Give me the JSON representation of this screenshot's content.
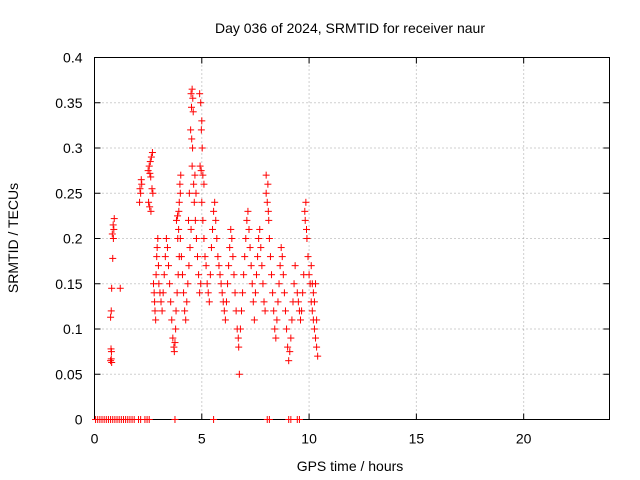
{
  "chart_data": {
    "type": "scatter",
    "title": "Day 036 of 2024, SRMTID for receiver naur",
    "xlabel": "GPS time / hours",
    "ylabel": "SRMTID / TECUs",
    "xlim": [
      0,
      24
    ],
    "ylim": [
      0,
      0.4
    ],
    "x_ticks": [
      "0",
      "5",
      "10",
      "15",
      "20"
    ],
    "y_ticks": [
      "0",
      "0.05",
      "0.1",
      "0.15",
      "0.2",
      "0.25",
      "0.3",
      "0.35",
      "0.4"
    ],
    "grid": true,
    "marker": "+",
    "color": "#ff0000",
    "series": [
      {
        "points": [
          [
            0.05,
            0
          ],
          [
            0.15,
            0
          ],
          [
            0.25,
            0
          ],
          [
            0.35,
            0
          ],
          [
            0.45,
            0
          ],
          [
            0.55,
            0
          ],
          [
            0.65,
            0
          ],
          [
            0.75,
            0
          ],
          [
            0.85,
            0
          ],
          [
            0.95,
            0
          ],
          [
            1.05,
            0
          ],
          [
            1.15,
            0
          ],
          [
            1.25,
            0
          ],
          [
            1.35,
            0
          ],
          [
            1.45,
            0
          ],
          [
            1.55,
            0
          ],
          [
            1.65,
            0
          ],
          [
            1.75,
            0
          ],
          [
            1.85,
            0
          ],
          [
            2.05,
            0
          ],
          [
            2.15,
            0
          ],
          [
            2.35,
            0
          ],
          [
            2.45,
            0
          ],
          [
            2.55,
            0
          ],
          [
            3.75,
            0
          ],
          [
            5.55,
            0
          ],
          [
            8.05,
            0
          ],
          [
            8.15,
            0
          ],
          [
            9.05,
            0
          ],
          [
            9.15,
            0
          ],
          [
            9.45,
            0
          ],
          [
            9.55,
            0
          ],
          [
            0.75,
            0.065
          ],
          [
            0.78,
            0.067
          ],
          [
            0.8,
            0.063
          ],
          [
            0.77,
            0.078
          ],
          [
            0.79,
            0.075
          ],
          [
            0.75,
            0.113
          ],
          [
            0.78,
            0.12
          ],
          [
            0.8,
            0.145
          ],
          [
            0.85,
            0.178
          ],
          [
            0.88,
            0.2
          ],
          [
            0.9,
            0.21
          ],
          [
            0.87,
            0.215
          ],
          [
            0.92,
            0.222
          ],
          [
            0.83,
            0.205
          ],
          [
            1.2,
            0.145
          ],
          [
            2.1,
            0.24
          ],
          [
            2.15,
            0.25
          ],
          [
            2.12,
            0.255
          ],
          [
            2.18,
            0.265
          ],
          [
            2.2,
            0.26
          ],
          [
            2.5,
            0.275
          ],
          [
            2.55,
            0.28
          ],
          [
            2.6,
            0.285
          ],
          [
            2.65,
            0.29
          ],
          [
            2.7,
            0.295
          ],
          [
            2.58,
            0.272
          ],
          [
            2.62,
            0.268
          ],
          [
            2.52,
            0.24
          ],
          [
            2.57,
            0.235
          ],
          [
            2.63,
            0.23
          ],
          [
            2.68,
            0.255
          ],
          [
            2.72,
            0.25
          ],
          [
            2.75,
            0.15
          ],
          [
            2.78,
            0.14
          ],
          [
            2.8,
            0.13
          ],
          [
            2.82,
            0.12
          ],
          [
            2.85,
            0.11
          ],
          [
            2.87,
            0.16
          ],
          [
            2.9,
            0.18
          ],
          [
            2.92,
            0.19
          ],
          [
            2.95,
            0.2
          ],
          [
            2.98,
            0.17
          ],
          [
            3.0,
            0.15
          ],
          [
            3.05,
            0.14
          ],
          [
            3.1,
            0.13
          ],
          [
            3.15,
            0.12
          ],
          [
            3.2,
            0.14
          ],
          [
            3.25,
            0.16
          ],
          [
            3.3,
            0.18
          ],
          [
            3.35,
            0.2
          ],
          [
            3.4,
            0.19
          ],
          [
            3.45,
            0.17
          ],
          [
            3.5,
            0.15
          ],
          [
            3.55,
            0.13
          ],
          [
            3.6,
            0.11
          ],
          [
            3.65,
            0.09
          ],
          [
            3.7,
            0.08
          ],
          [
            3.72,
            0.075
          ],
          [
            3.75,
            0.085
          ],
          [
            3.78,
            0.1
          ],
          [
            3.8,
            0.12
          ],
          [
            3.85,
            0.14
          ],
          [
            3.9,
            0.16
          ],
          [
            3.95,
            0.18
          ],
          [
            4.0,
            0.2
          ],
          [
            3.88,
            0.2
          ],
          [
            3.92,
            0.21
          ],
          [
            3.82,
            0.22
          ],
          [
            3.87,
            0.225
          ],
          [
            3.95,
            0.24
          ],
          [
            4.0,
            0.25
          ],
          [
            3.98,
            0.26
          ],
          [
            4.02,
            0.27
          ],
          [
            3.93,
            0.23
          ],
          [
            4.05,
            0.18
          ],
          [
            4.1,
            0.16
          ],
          [
            4.15,
            0.14
          ],
          [
            4.2,
            0.12
          ],
          [
            4.25,
            0.11
          ],
          [
            4.3,
            0.13
          ],
          [
            4.35,
            0.15
          ],
          [
            4.4,
            0.17
          ],
          [
            4.45,
            0.19
          ],
          [
            4.5,
            0.21
          ],
          [
            4.38,
            0.22
          ],
          [
            4.42,
            0.25
          ],
          [
            4.5,
            0.36
          ],
          [
            4.55,
            0.365
          ],
          [
            4.58,
            0.355
          ],
          [
            4.52,
            0.345
          ],
          [
            4.6,
            0.34
          ],
          [
            4.48,
            0.32
          ],
          [
            4.53,
            0.31
          ],
          [
            4.57,
            0.3
          ],
          [
            4.55,
            0.28
          ],
          [
            4.62,
            0.26
          ],
          [
            4.65,
            0.24
          ],
          [
            4.7,
            0.22
          ],
          [
            4.75,
            0.2
          ],
          [
            4.8,
            0.18
          ],
          [
            4.85,
            0.16
          ],
          [
            4.9,
            0.14
          ],
          [
            4.95,
            0.15
          ],
          [
            4.68,
            0.27
          ],
          [
            4.73,
            0.25
          ],
          [
            4.9,
            0.36
          ],
          [
            4.95,
            0.35
          ],
          [
            5.0,
            0.33
          ],
          [
            4.98,
            0.32
          ],
          [
            5.02,
            0.3
          ],
          [
            4.92,
            0.28
          ],
          [
            4.97,
            0.275
          ],
          [
            5.05,
            0.27
          ],
          [
            5.1,
            0.26
          ],
          [
            5.0,
            0.24
          ],
          [
            5.05,
            0.22
          ],
          [
            5.1,
            0.2
          ],
          [
            5.15,
            0.18
          ],
          [
            5.2,
            0.17
          ],
          [
            5.25,
            0.15
          ],
          [
            5.3,
            0.14
          ],
          [
            5.35,
            0.13
          ],
          [
            5.4,
            0.16
          ],
          [
            5.45,
            0.19
          ],
          [
            5.5,
            0.21
          ],
          [
            5.55,
            0.23
          ],
          [
            5.6,
            0.24
          ],
          [
            5.65,
            0.22
          ],
          [
            5.7,
            0.2
          ],
          [
            5.75,
            0.18
          ],
          [
            5.8,
            0.17
          ],
          [
            5.85,
            0.16
          ],
          [
            5.9,
            0.15
          ],
          [
            5.95,
            0.14
          ],
          [
            6.0,
            0.13
          ],
          [
            6.05,
            0.12
          ],
          [
            6.1,
            0.11
          ],
          [
            6.15,
            0.13
          ],
          [
            6.2,
            0.15
          ],
          [
            6.25,
            0.17
          ],
          [
            6.3,
            0.19
          ],
          [
            6.35,
            0.21
          ],
          [
            6.4,
            0.2
          ],
          [
            6.45,
            0.18
          ],
          [
            6.5,
            0.16
          ],
          [
            6.55,
            0.14
          ],
          [
            6.6,
            0.12
          ],
          [
            6.65,
            0.1
          ],
          [
            6.7,
            0.09
          ],
          [
            6.72,
            0.08
          ],
          [
            6.75,
            0.05
          ],
          [
            6.8,
            0.1
          ],
          [
            6.85,
            0.12
          ],
          [
            6.9,
            0.14
          ],
          [
            6.95,
            0.16
          ],
          [
            7.0,
            0.18
          ],
          [
            7.05,
            0.2
          ],
          [
            7.1,
            0.22
          ],
          [
            7.15,
            0.23
          ],
          [
            7.2,
            0.21
          ],
          [
            7.25,
            0.19
          ],
          [
            7.3,
            0.17
          ],
          [
            7.35,
            0.15
          ],
          [
            7.4,
            0.13
          ],
          [
            7.45,
            0.11
          ],
          [
            7.5,
            0.14
          ],
          [
            7.55,
            0.16
          ],
          [
            7.6,
            0.18
          ],
          [
            7.65,
            0.2
          ],
          [
            7.7,
            0.21
          ],
          [
            7.75,
            0.19
          ],
          [
            7.8,
            0.17
          ],
          [
            7.85,
            0.15
          ],
          [
            7.9,
            0.13
          ],
          [
            7.95,
            0.12
          ],
          [
            8.0,
            0.25
          ],
          [
            8.05,
            0.24
          ],
          [
            8.1,
            0.23
          ],
          [
            8.12,
            0.22
          ],
          [
            8.0,
            0.27
          ],
          [
            8.08,
            0.26
          ],
          [
            8.15,
            0.2
          ],
          [
            8.2,
            0.18
          ],
          [
            8.25,
            0.16
          ],
          [
            8.3,
            0.14
          ],
          [
            8.35,
            0.12
          ],
          [
            8.4,
            0.1
          ],
          [
            8.45,
            0.09
          ],
          [
            8.5,
            0.11
          ],
          [
            8.55,
            0.13
          ],
          [
            8.6,
            0.15
          ],
          [
            8.65,
            0.17
          ],
          [
            8.7,
            0.19
          ],
          [
            8.75,
            0.18
          ],
          [
            8.8,
            0.16
          ],
          [
            8.85,
            0.14
          ],
          [
            8.9,
            0.12
          ],
          [
            8.95,
            0.1
          ],
          [
            9.0,
            0.08
          ],
          [
            9.05,
            0.065
          ],
          [
            9.1,
            0.075
          ],
          [
            9.15,
            0.09
          ],
          [
            9.2,
            0.11
          ],
          [
            9.25,
            0.13
          ],
          [
            9.3,
            0.15
          ],
          [
            9.35,
            0.17
          ],
          [
            9.45,
            0.14
          ],
          [
            9.5,
            0.13
          ],
          [
            9.55,
            0.12
          ],
          [
            9.6,
            0.11
          ],
          [
            9.65,
            0.12
          ],
          [
            9.7,
            0.14
          ],
          [
            9.75,
            0.16
          ],
          [
            9.8,
            0.23
          ],
          [
            9.85,
            0.24
          ],
          [
            9.82,
            0.22
          ],
          [
            9.88,
            0.21
          ],
          [
            9.9,
            0.2
          ],
          [
            9.95,
            0.18
          ],
          [
            10.0,
            0.16
          ],
          [
            10.05,
            0.15
          ],
          [
            10.1,
            0.13
          ],
          [
            10.15,
            0.12
          ],
          [
            10.2,
            0.11
          ],
          [
            10.25,
            0.1
          ],
          [
            10.3,
            0.09
          ],
          [
            10.35,
            0.08
          ],
          [
            10.4,
            0.07
          ],
          [
            10.1,
            0.17
          ],
          [
            10.15,
            0.15
          ],
          [
            10.2,
            0.14
          ],
          [
            10.25,
            0.13
          ],
          [
            10.3,
            0.15
          ],
          [
            10.35,
            0.11
          ]
        ]
      }
    ]
  }
}
